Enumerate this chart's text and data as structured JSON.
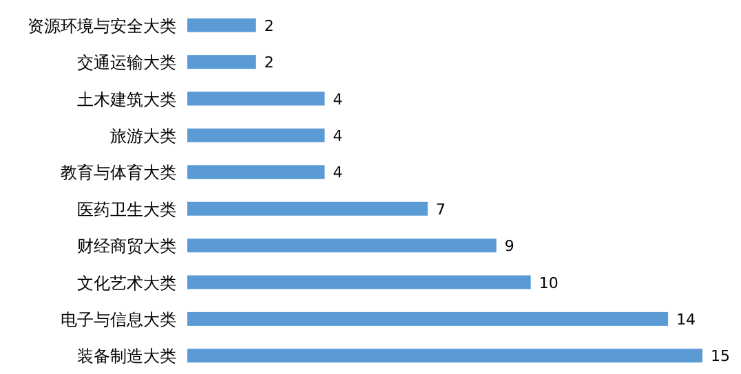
{
  "chart_data": {
    "type": "bar",
    "orientation": "horizontal",
    "categories": [
      "资源环境与安全大类",
      "交通运输大类",
      "土木建筑大类",
      "旅游大类",
      "教育与体育大类",
      "医药卫生大类",
      "财经商贸大类",
      "文化艺术大类",
      "电子与信息大类",
      "装备制造大类"
    ],
    "values": [
      2,
      2,
      4,
      4,
      4,
      7,
      9,
      10,
      14,
      15
    ],
    "color": "#5b9bd5",
    "data_labels": true,
    "legend": false,
    "grid": false
  }
}
